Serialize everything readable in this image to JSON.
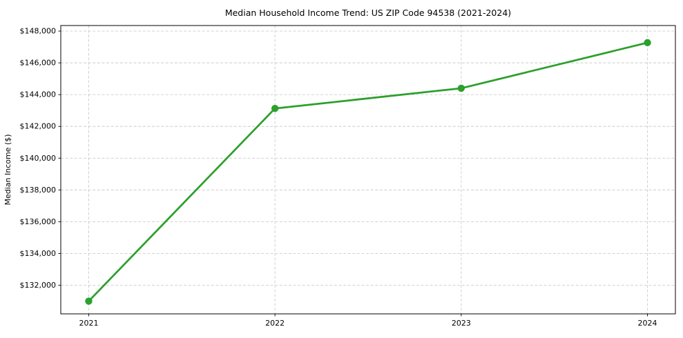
{
  "chart_data": {
    "type": "line",
    "title": "Median Household Income Trend: US ZIP Code 94538 (2021-2024)",
    "xlabel": "",
    "ylabel": "Median Income ($)",
    "x": [
      2021,
      2022,
      2023,
      2024
    ],
    "x_tick_labels": [
      "2021",
      "2022",
      "2023",
      "2024"
    ],
    "series": [
      {
        "name": "Median household income",
        "values": [
          131000,
          143130,
          144400,
          147270
        ]
      }
    ],
    "y_ticks": [
      132000,
      134000,
      136000,
      138000,
      140000,
      142000,
      144000,
      146000,
      148000
    ],
    "y_tick_labels": [
      "$132,000",
      "$134,000",
      "$136,000",
      "$138,000",
      "$140,000",
      "$142,000",
      "$144,000",
      "$146,000",
      "$148,000"
    ],
    "xlim": [
      2020.85,
      2024.15
    ],
    "ylim": [
      130200,
      148350
    ],
    "grid": true,
    "grid_style": "dashed",
    "legend": "none",
    "line_color": "#2ca02c",
    "marker_color": "#2ca02c",
    "marker": "circle",
    "background": "#ffffff"
  }
}
